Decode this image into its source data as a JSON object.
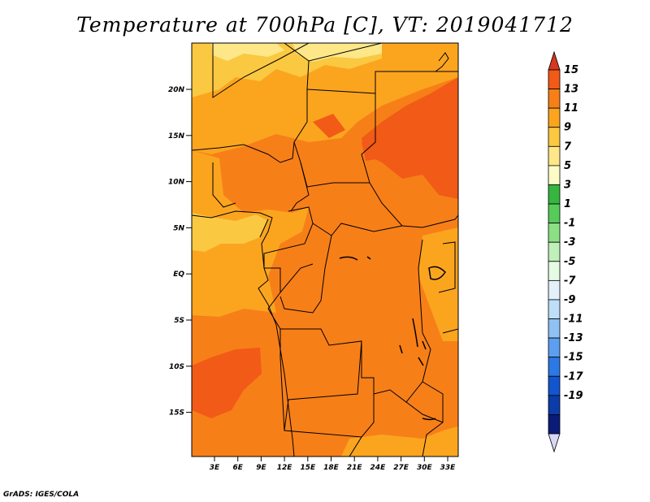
{
  "title": "Temperature at 700hPa [C], VT: 2019041712",
  "footer": "GrADS: IGES/COLA",
  "map": {
    "lat_ticks": [
      "20N",
      "15N",
      "10N",
      "5N",
      "EQ",
      "5S",
      "10S",
      "15S"
    ],
    "lon_ticks": [
      "3E",
      "6E",
      "9E",
      "12E",
      "15E",
      "18E",
      "21E",
      "24E",
      "27E",
      "30E",
      "33E"
    ],
    "extent": {
      "lon_min": 0,
      "lon_max": 35,
      "lat_min": -20,
      "lat_max": 25
    },
    "field": "Temperature at 700hPa",
    "units": "C"
  },
  "colorbar": {
    "levels": [
      "15",
      "13",
      "11",
      "9",
      "7",
      "5",
      "3",
      "1",
      "-1",
      "-3",
      "-5",
      "-7",
      "-9",
      "-11",
      "-13",
      "-15",
      "-17",
      "-19"
    ],
    "colors": [
      "#d7361f",
      "#f15a17",
      "#f77f18",
      "#fba51f",
      "#fbc842",
      "#fde788",
      "#fefcc6",
      "#36b640",
      "#56cb5a",
      "#8ddf86",
      "#c0f0ba",
      "#e6fbe4",
      "#e3f1fb",
      "#bfdef7",
      "#8fc2f3",
      "#5c9ff0",
      "#2c79e4",
      "#1255cf",
      "#0b3ca8",
      "#0a1b78",
      "#d7d7f7"
    ]
  }
}
